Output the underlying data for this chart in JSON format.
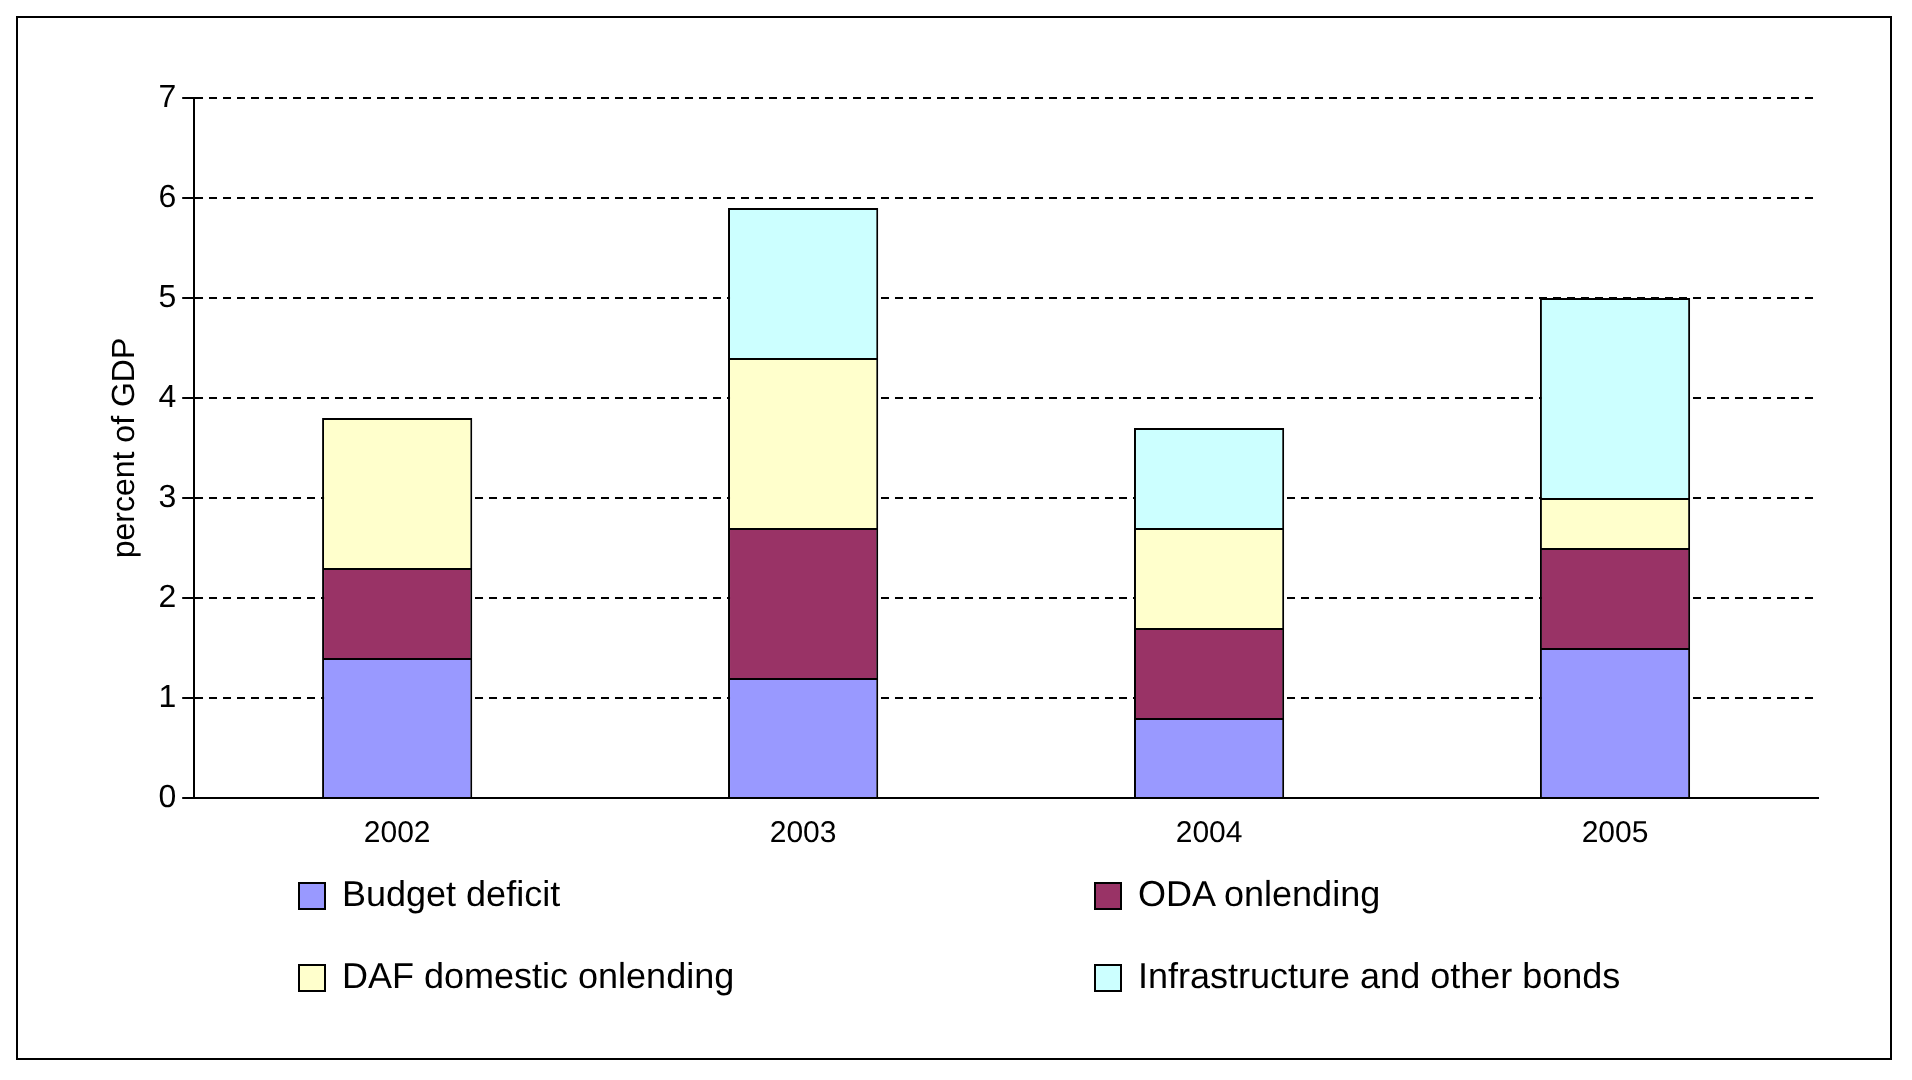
{
  "chart_data": {
    "type": "bar",
    "ylabel": "percent of GDP",
    "categories": [
      "2002",
      "2003",
      "2004",
      "2005"
    ],
    "stacked": true,
    "series": [
      {
        "name": "Budget deficit",
        "color": "#9999ff",
        "values": [
          1.4,
          1.2,
          0.8,
          1.5
        ]
      },
      {
        "name": "ODA onlending",
        "color": "#993366",
        "values": [
          0.9,
          1.5,
          0.9,
          1.0
        ]
      },
      {
        "name": "DAF domestic onlending",
        "color": "#ffffcc",
        "values": [
          1.5,
          1.7,
          1.0,
          0.5
        ]
      },
      {
        "name": "Infrastructure and other bonds",
        "color": "#ccffff",
        "values": [
          null,
          1.5,
          1.0,
          2.0
        ]
      }
    ],
    "ylim": [
      0,
      7
    ],
    "yticks": [
      0,
      1,
      2,
      3,
      4,
      5,
      6,
      7
    ],
    "grid": "y",
    "legend": "bottom"
  }
}
